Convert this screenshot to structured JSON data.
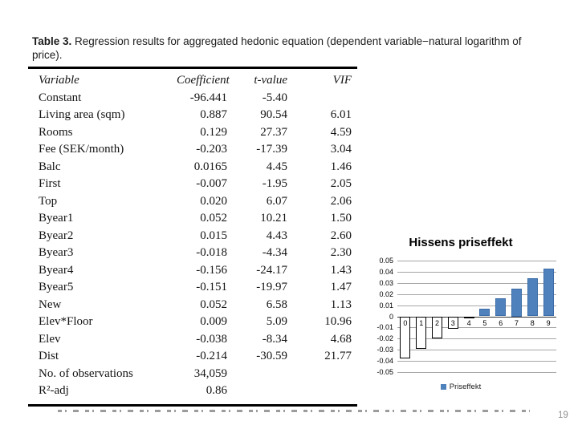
{
  "slide": {
    "page_number": "19"
  },
  "table": {
    "title_bold": "Table 3.",
    "title_line1_rest": " Regression results for aggregated hedonic equation (dependent variable−natural logarithm of",
    "title_line2": "price).",
    "columns": [
      "Variable",
      "Coefficient",
      "t-value",
      "VIF"
    ],
    "rows": [
      [
        "Constant",
        "-96.441",
        "-5.40",
        ""
      ],
      [
        "Living area (sqm)",
        "0.887",
        "90.54",
        "6.01"
      ],
      [
        "Rooms",
        "0.129",
        "27.37",
        "4.59"
      ],
      [
        "Fee (SEK/month)",
        "-0.203",
        "-17.39",
        "3.04"
      ],
      [
        "Balc",
        "0.0165",
        "4.45",
        "1.46"
      ],
      [
        "First",
        "-0.007",
        "-1.95",
        "2.05"
      ],
      [
        "Top",
        "0.020",
        "6.07",
        "2.06"
      ],
      [
        "Byear1",
        "0.052",
        "10.21",
        "1.50"
      ],
      [
        "Byear2",
        "0.015",
        "4.43",
        "2.60"
      ],
      [
        "Byear3",
        "-0.018",
        "-4.34",
        "2.30"
      ],
      [
        "Byear4",
        "-0.156",
        "-24.17",
        "1.43"
      ],
      [
        "Byear5",
        "-0.151",
        "-19.97",
        "1.47"
      ],
      [
        "New",
        "0.052",
        "6.58",
        "1.13"
      ],
      [
        "Elev*Floor",
        "0.009",
        "5.09",
        "10.96"
      ],
      [
        "Elev",
        "-0.038",
        "-8.34",
        "4.68"
      ],
      [
        "Dist",
        "-0.214",
        "-30.59",
        "21.77"
      ],
      [
        "No. of observations",
        "34,059",
        "",
        ""
      ],
      [
        "R²-adj",
        "0.86",
        "",
        ""
      ]
    ]
  },
  "chart_data": {
    "type": "bar",
    "title": "Hissens priseffekt",
    "categories": [
      "0",
      "1",
      "2",
      "3",
      "4",
      "5",
      "6",
      "7",
      "8",
      "9"
    ],
    "series": [
      {
        "name": "Priseffekt",
        "values": [
          -0.038,
          -0.029,
          -0.02,
          -0.011,
          -0.002,
          0.007,
          0.016,
          0.025,
          0.034,
          0.043
        ]
      }
    ],
    "ylim": [
      -0.05,
      0.05
    ],
    "ytick_step": 0.01,
    "yticks": [
      "0.05",
      "0.04",
      "0.03",
      "0.02",
      "0.01",
      "0",
      "-0.01",
      "-0.02",
      "-0.03",
      "-0.04",
      "-0.05"
    ],
    "legend_position": "bottom",
    "grid": true,
    "colors": {
      "bar_positive": "#4F81BD",
      "bar_positive_border": "#3C6CA8",
      "bar_negative_fill": "#FFFFFF",
      "bar_negative_border": "#000000",
      "gridline": "#A6A6A6",
      "axis": "#333333"
    }
  }
}
